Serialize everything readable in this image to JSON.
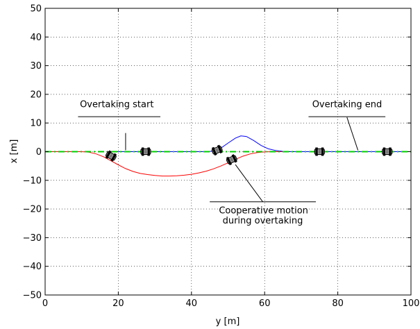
{
  "chart_data": {
    "type": "line",
    "title": "",
    "xlabel": "y [m]",
    "ylabel": "x [m]",
    "xlim": [
      0,
      100
    ],
    "ylim": [
      -50,
      50
    ],
    "xticks": [
      0,
      20,
      40,
      60,
      80,
      100
    ],
    "yticks": [
      -50,
      -40,
      -30,
      -20,
      -10,
      0,
      10,
      20,
      30,
      40,
      50
    ],
    "grid": true,
    "series": [
      {
        "color": "#ff0000",
        "style": "solid",
        "points": [
          [
            0,
            0
          ],
          [
            10,
            0
          ],
          [
            12,
            -0.2
          ],
          [
            14,
            -0.8
          ],
          [
            16,
            -1.8
          ],
          [
            18,
            -3.2
          ],
          [
            20,
            -4.6
          ],
          [
            22,
            -5.9
          ],
          [
            24,
            -6.9
          ],
          [
            26,
            -7.6
          ],
          [
            28,
            -8.0
          ],
          [
            30,
            -8.3
          ],
          [
            32,
            -8.5
          ],
          [
            34,
            -8.5
          ],
          [
            36,
            -8.4
          ],
          [
            38,
            -8.2
          ],
          [
            40,
            -7.9
          ],
          [
            42,
            -7.4
          ],
          [
            44,
            -6.8
          ],
          [
            46,
            -6.0
          ],
          [
            48,
            -5.0
          ],
          [
            50,
            -3.9
          ],
          [
            52,
            -2.7
          ],
          [
            54,
            -1.6
          ],
          [
            56,
            -0.8
          ],
          [
            58,
            -0.3
          ],
          [
            60,
            -0.1
          ],
          [
            62,
            0
          ],
          [
            100,
            0
          ]
        ]
      },
      {
        "color": "#0000ff",
        "style": "solid",
        "points": [
          [
            18,
            0
          ],
          [
            44,
            0
          ],
          [
            46,
            0.2
          ],
          [
            48,
            1.2
          ],
          [
            50,
            3.0
          ],
          [
            52,
            4.7
          ],
          [
            53.5,
            5.5
          ],
          [
            55,
            5.3
          ],
          [
            57,
            3.9
          ],
          [
            59,
            2.2
          ],
          [
            61,
            1.0
          ],
          [
            63,
            0.4
          ],
          [
            65,
            0.1
          ],
          [
            67,
            0
          ],
          [
            100,
            0
          ]
        ]
      },
      {
        "color": "#00cc00",
        "style": "dashdot",
        "points": [
          [
            0,
            0
          ],
          [
            100,
            0
          ]
        ]
      }
    ],
    "vehicles": [
      [
        18,
        -1.5
      ],
      [
        27.5,
        0
      ],
      [
        47,
        0.5
      ],
      [
        51,
        -2.8
      ],
      [
        75,
        0
      ],
      [
        93.5,
        0
      ]
    ],
    "annotations": [
      {
        "text": "Overtaking start",
        "anchor": [
          22,
          6.5
        ],
        "target": [
          22,
          0.5
        ],
        "text_at": [
          9.5,
          15.5
        ],
        "underline": [
          9,
          31.5,
          12.2
        ]
      },
      {
        "text": "Overtaking end",
        "anchor": [
          82.5,
          12
        ],
        "target": [
          85.5,
          0.5
        ],
        "text_at": [
          73,
          15.5
        ],
        "underline": [
          72,
          93,
          12.2
        ]
      },
      {
        "text": "Cooperative motion",
        "anchor": [
          59.5,
          -17.5
        ],
        "target": [
          52,
          -4.5
        ],
        "text_at": [
          47.5,
          -21.5
        ],
        "underline": [
          45,
          74,
          -17.5
        ]
      },
      {
        "text": "during overtaking",
        "text_at": [
          48.5,
          -25
        ],
        "line": false
      }
    ]
  }
}
